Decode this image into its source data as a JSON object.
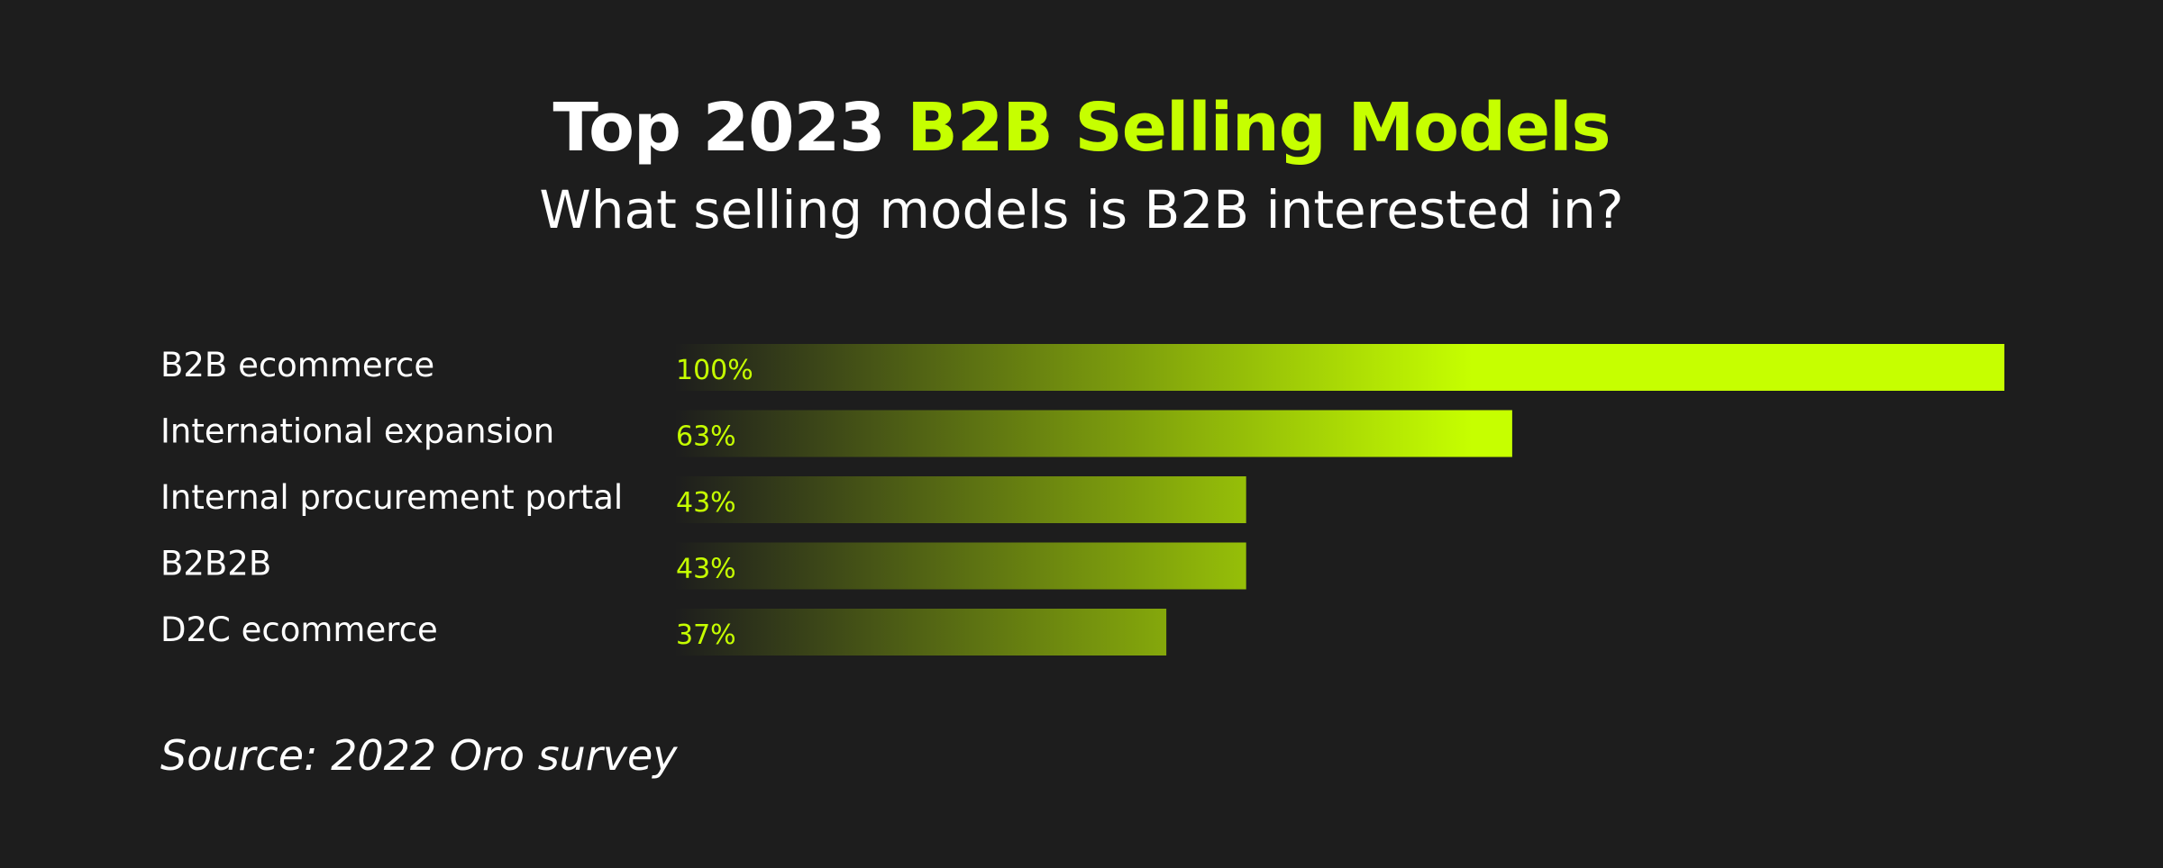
{
  "chart_data": {
    "type": "bar",
    "orientation": "horizontal",
    "title_plain": "Top 2023",
    "title_accent": "B2B Selling Models",
    "subtitle": "What selling models is B2B interested in?",
    "categories": [
      "B2B ecommerce",
      "International expansion",
      "Internal procurement portal",
      "B2B2B",
      "D2C ecommerce"
    ],
    "values": [
      100,
      63,
      43,
      43,
      37
    ],
    "value_labels": [
      "100%",
      "63%",
      "43%",
      "43%",
      "37%"
    ],
    "xlim": [
      0,
      100
    ],
    "grid": false,
    "legend": "none"
  },
  "source": "Source: 2022 Oro survey",
  "colors": {
    "background": "#1d1d1d",
    "accent": "#c6ff00",
    "text": "#ffffff",
    "bar_start": "#1d1d1d"
  }
}
